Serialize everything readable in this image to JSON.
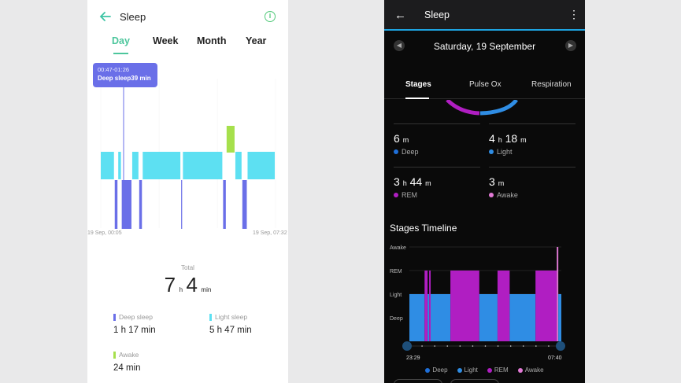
{
  "left_phone": {
    "title": "Sleep",
    "tabs": [
      {
        "label": "Day",
        "active": true
      },
      {
        "label": "Week",
        "active": false
      },
      {
        "label": "Month",
        "active": false
      },
      {
        "label": "Year",
        "active": false
      }
    ],
    "tooltip": {
      "time": "00:47-01:26",
      "text": "Deep sleep39 min"
    },
    "axis_start": "19 Sep, 00:05",
    "axis_end": "19 Sep, 07:32",
    "total_label": "Total",
    "total_hours": "7",
    "total_hours_unit": "h",
    "total_minutes": "4",
    "total_minutes_unit": "min",
    "stats": [
      {
        "label": "Deep sleep",
        "value": "1 h 17 min",
        "color": "#6a6fe8"
      },
      {
        "label": "Light sleep",
        "value": "5 h 47 min",
        "color": "#5de0f2"
      },
      {
        "label": "Awake",
        "value": "24 min",
        "color": "#a6e04c"
      }
    ],
    "colors": {
      "accent": "#4cc69c",
      "deep": "#6a6fe8",
      "light": "#5de0f2",
      "awake": "#a6e04c"
    },
    "timeline": [
      {
        "stage": "light",
        "start": 0.0,
        "end": 0.08
      },
      {
        "stage": "deep",
        "start": 0.08,
        "end": 0.1
      },
      {
        "stage": "light",
        "start": 0.1,
        "end": 0.12
      },
      {
        "stage": "deep",
        "start": 0.12,
        "end": 0.18
      },
      {
        "stage": "light",
        "start": 0.18,
        "end": 0.22
      },
      {
        "stage": "deep",
        "start": 0.22,
        "end": 0.24
      },
      {
        "stage": "light",
        "start": 0.24,
        "end": 0.46
      },
      {
        "stage": "deep",
        "start": 0.46,
        "end": 0.47
      },
      {
        "stage": "light",
        "start": 0.47,
        "end": 0.7
      },
      {
        "stage": "deep",
        "start": 0.7,
        "end": 0.72
      },
      {
        "stage": "awake",
        "start": 0.72,
        "end": 0.77
      },
      {
        "stage": "light",
        "start": 0.77,
        "end": 0.81
      },
      {
        "stage": "deep",
        "start": 0.81,
        "end": 0.84
      },
      {
        "stage": "light",
        "start": 0.84,
        "end": 1.0
      }
    ]
  },
  "right_phone": {
    "title": "Sleep",
    "date": "Saturday, 19 September",
    "tabs": [
      {
        "label": "Stages",
        "active": true
      },
      {
        "label": "Pulse Ox",
        "active": false
      },
      {
        "label": "Respiration",
        "active": false
      }
    ],
    "stats": [
      {
        "hours": "",
        "hours_unit": "",
        "minutes": "6",
        "minutes_unit": "m",
        "label": "Deep",
        "color": "#1e6fd9"
      },
      {
        "hours": "4",
        "hours_unit": "h",
        "minutes": "18",
        "minutes_unit": "m",
        "label": "Light",
        "color": "#2f8de4"
      },
      {
        "hours": "3",
        "hours_unit": "h",
        "minutes": "44",
        "minutes_unit": "m",
        "label": "REM",
        "color": "#b01ec2"
      },
      {
        "hours": "",
        "hours_unit": "",
        "minutes": "3",
        "minutes_unit": "m",
        "label": "Awake",
        "color": "#e27ad6"
      }
    ],
    "section_title": "Stages Timeline",
    "y_labels": [
      "Awake",
      "REM",
      "Light",
      "Deep"
    ],
    "time_start": "23:29",
    "time_end": "07:40",
    "legend": [
      {
        "label": "Deep",
        "color": "#1e6fd9"
      },
      {
        "label": "Light",
        "color": "#2f8de4"
      },
      {
        "label": "REM",
        "color": "#b01ec2"
      },
      {
        "label": "Awake",
        "color": "#e27ad6"
      }
    ],
    "colors": {
      "accent": "#1ea3e0",
      "light": "#2f8de4",
      "rem": "#b01ec2",
      "awake": "#e27ad6",
      "deep": "#1e6fd9"
    },
    "timeline": [
      {
        "stage": "light",
        "start": 0.0,
        "end": 0.1
      },
      {
        "stage": "rem",
        "start": 0.1,
        "end": 0.12
      },
      {
        "stage": "light",
        "start": 0.12,
        "end": 0.13
      },
      {
        "stage": "rem",
        "start": 0.13,
        "end": 0.14
      },
      {
        "stage": "light",
        "start": 0.14,
        "end": 0.27
      },
      {
        "stage": "rem",
        "start": 0.27,
        "end": 0.46
      },
      {
        "stage": "light",
        "start": 0.46,
        "end": 0.58
      },
      {
        "stage": "rem",
        "start": 0.58,
        "end": 0.66
      },
      {
        "stage": "light",
        "start": 0.66,
        "end": 0.83
      },
      {
        "stage": "rem",
        "start": 0.83,
        "end": 0.97
      },
      {
        "stage": "awake",
        "start": 0.97,
        "end": 0.98
      },
      {
        "stage": "light",
        "start": 0.98,
        "end": 1.0
      }
    ]
  }
}
